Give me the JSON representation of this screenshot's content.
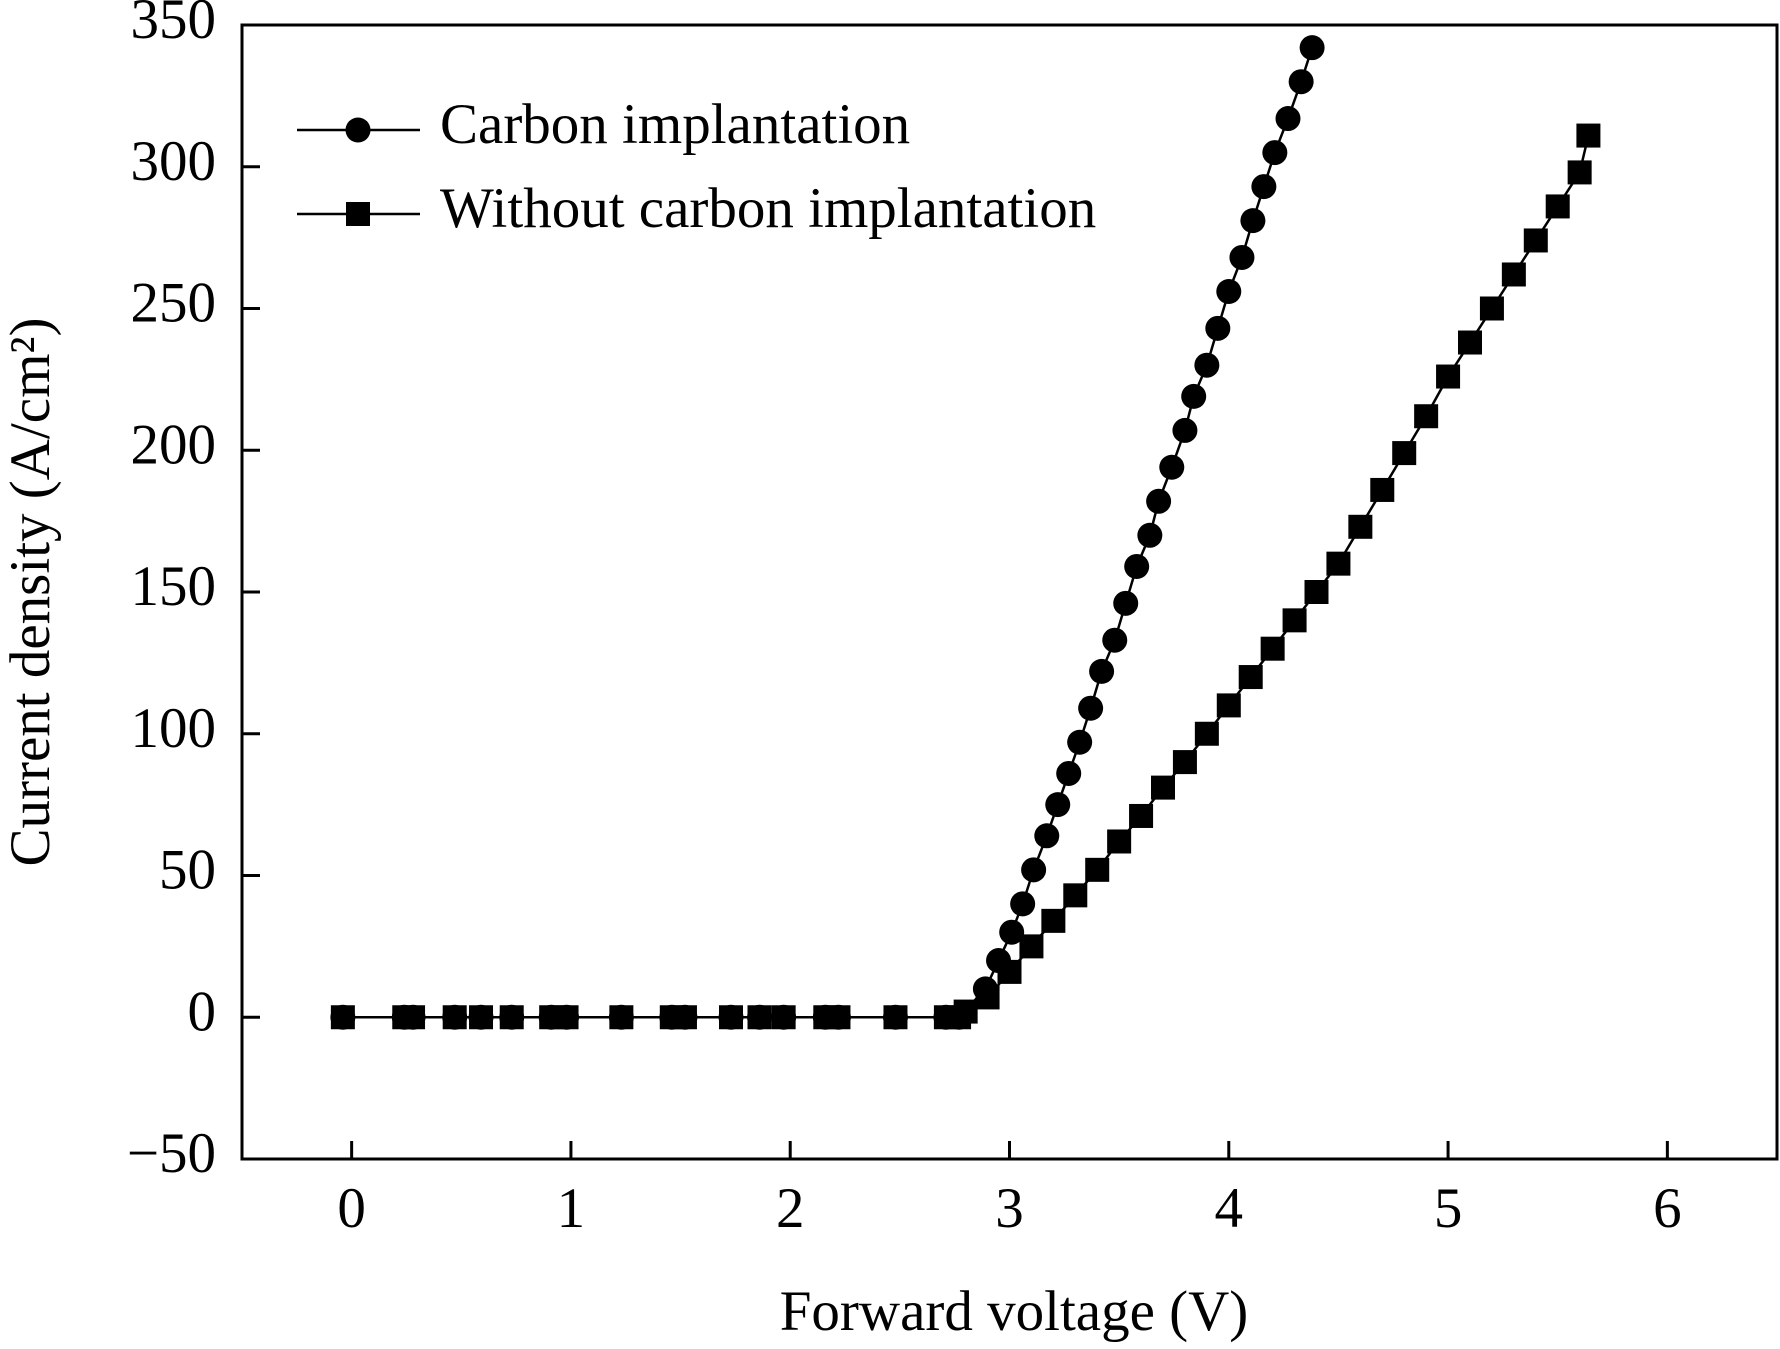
{
  "chart_data": {
    "type": "scatter",
    "x_label": "Forward voltage (V)",
    "y_label": "Current density (A/cm²)",
    "xlim": [
      -0.5,
      6.5
    ],
    "xticks": [
      0,
      1,
      2,
      3,
      4,
      5,
      6
    ],
    "ylim": [
      -50,
      350
    ],
    "yticks": [
      {
        "value": -50,
        "label": "−50"
      },
      0,
      50,
      100,
      150,
      200,
      250,
      300,
      350
    ],
    "legend": "upper left",
    "series": [
      {
        "name": "Carbon implantation",
        "color": "#000000",
        "marker": "circle",
        "x": [
          -0.04,
          0.24,
          0.28,
          0.47,
          0.59,
          0.73,
          0.91,
          0.98,
          1.23,
          1.46,
          1.52,
          1.73,
          1.86,
          1.97,
          2.16,
          2.22,
          2.48,
          2.71,
          2.77,
          2.89,
          2.95,
          3.01,
          3.06,
          3.11,
          3.17,
          3.22,
          3.27,
          3.32,
          3.37,
          3.42,
          3.48,
          3.53,
          3.58,
          3.64,
          3.68,
          3.74,
          3.8,
          3.84,
          3.9,
          3.95,
          4.0,
          4.06,
          4.11,
          4.16,
          4.21,
          4.27,
          4.33,
          4.38
        ],
        "values": [
          0,
          0,
          0,
          0,
          0,
          0,
          0,
          0,
          0,
          0,
          0,
          0,
          0,
          0,
          0,
          0,
          0,
          0,
          0,
          10,
          20,
          30,
          40,
          52,
          64,
          75,
          86,
          97,
          109,
          122,
          133,
          146,
          159,
          170,
          182,
          194,
          207,
          219,
          230,
          243,
          256,
          268,
          281,
          293,
          305,
          317,
          330,
          342
        ]
      },
      {
        "name": "Without carbon implantation",
        "color": "#000000",
        "marker": "square",
        "x": [
          -0.04,
          0.24,
          0.28,
          0.47,
          0.59,
          0.73,
          0.91,
          0.98,
          1.23,
          1.46,
          1.52,
          1.73,
          1.86,
          1.97,
          2.16,
          2.22,
          2.48,
          2.71,
          2.77,
          2.8,
          2.9,
          3.0,
          3.1,
          3.2,
          3.3,
          3.4,
          3.5,
          3.6,
          3.7,
          3.8,
          3.9,
          4.0,
          4.1,
          4.2,
          4.3,
          4.4,
          4.5,
          4.6,
          4.7,
          4.8,
          4.9,
          5.0,
          5.1,
          5.2,
          5.3,
          5.4,
          5.5,
          5.6,
          5.64
        ],
        "values": [
          0,
          0,
          0,
          0,
          0,
          0,
          0,
          0,
          0,
          0,
          0,
          0,
          0,
          0,
          0,
          0,
          0,
          0,
          0,
          2,
          7,
          16,
          25,
          34,
          43,
          52,
          62,
          71,
          81,
          90,
          100,
          110,
          120,
          130,
          140,
          150,
          160,
          173,
          186,
          199,
          212,
          226,
          238,
          250,
          262,
          274,
          286,
          298,
          311
        ]
      }
    ]
  }
}
